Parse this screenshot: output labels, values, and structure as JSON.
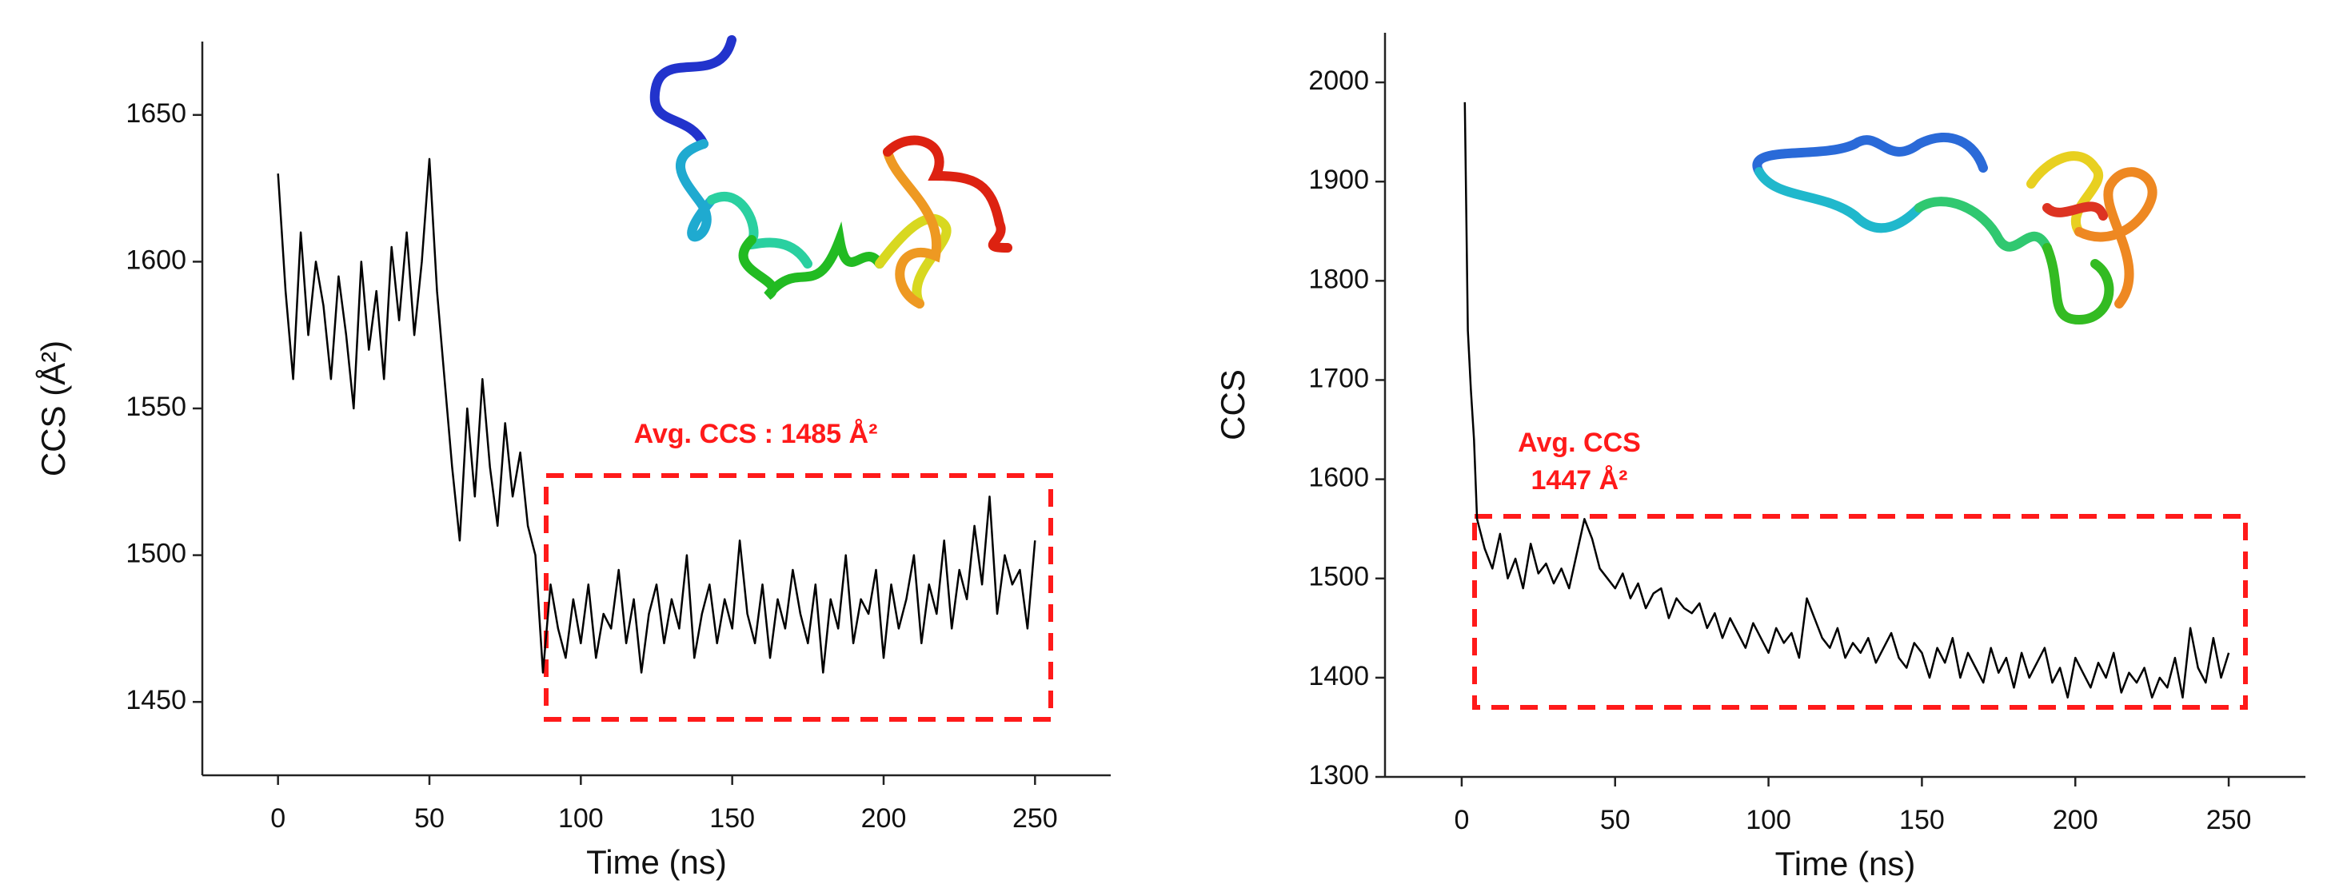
{
  "chart_data": [
    {
      "type": "line",
      "x_label": "Time (ns)",
      "y_label": "CCS (Å²)",
      "annotations": [
        "Avg. CCS : 1485 Å²"
      ],
      "color": "#000000",
      "xlim": [
        -25,
        275
      ],
      "ylim": [
        1425,
        1675
      ],
      "xticks": [
        0,
        50,
        100,
        150,
        200,
        250
      ],
      "yticks": [
        1450,
        1500,
        1550,
        1600,
        1650
      ],
      "x": [
        0,
        2.5,
        5,
        7.5,
        10,
        12.5,
        15,
        17.5,
        20,
        22.5,
        25,
        27.5,
        30,
        32.5,
        35,
        37.5,
        40,
        42.5,
        45,
        47.5,
        50,
        52.5,
        55,
        57.5,
        60,
        62.5,
        65,
        67.5,
        70,
        72.5,
        75,
        77.5,
        80,
        82.5,
        85,
        87.5,
        90,
        92.5,
        95,
        97.5,
        100,
        102.5,
        105,
        107.5,
        110,
        112.5,
        115,
        117.5,
        120,
        122.5,
        125,
        127.5,
        130,
        132.5,
        135,
        137.5,
        140,
        142.5,
        145,
        147.5,
        150,
        152.5,
        155,
        157.5,
        160,
        162.5,
        165,
        167.5,
        170,
        172.5,
        175,
        177.5,
        180,
        182.5,
        185,
        187.5,
        190,
        192.5,
        195,
        197.5,
        200,
        202.5,
        205,
        207.5,
        210,
        212.5,
        215,
        217.5,
        220,
        222.5,
        225,
        227.5,
        230,
        232.5,
        235,
        237.5,
        240,
        242.5,
        245,
        247.5,
        250
      ],
      "values": [
        1630,
        1590,
        1560,
        1610,
        1575,
        1600,
        1585,
        1560,
        1595,
        1575,
        1550,
        1600,
        1570,
        1590,
        1560,
        1605,
        1580,
        1610,
        1575,
        1600,
        1635,
        1590,
        1560,
        1530,
        1505,
        1550,
        1520,
        1560,
        1530,
        1510,
        1545,
        1520,
        1535,
        1510,
        1500,
        1460,
        1490,
        1475,
        1465,
        1485,
        1470,
        1490,
        1465,
        1480,
        1475,
        1495,
        1470,
        1485,
        1460,
        1480,
        1490,
        1470,
        1485,
        1475,
        1500,
        1465,
        1480,
        1490,
        1470,
        1485,
        1475,
        1505,
        1480,
        1470,
        1490,
        1465,
        1485,
        1475,
        1495,
        1480,
        1470,
        1490,
        1460,
        1485,
        1475,
        1500,
        1470,
        1485,
        1480,
        1495,
        1465,
        1490,
        1475,
        1485,
        1500,
        1470,
        1490,
        1480,
        1505,
        1475,
        1495,
        1485,
        1510,
        1490,
        1520,
        1480,
        1500,
        1490,
        1495,
        1475,
        1505
      ]
    },
    {
      "type": "line",
      "x_label": "Time (ns)",
      "y_label": "CCS",
      "annotations": [
        "Avg. CCS",
        "1447 Å²"
      ],
      "color": "#000000",
      "xlim": [
        -25,
        275
      ],
      "ylim": [
        1300,
        2050
      ],
      "xticks": [
        0,
        50,
        100,
        150,
        200,
        250
      ],
      "yticks": [
        1300,
        1400,
        1500,
        1600,
        1700,
        1800,
        1900,
        2000
      ],
      "x": [
        1,
        2,
        3,
        4,
        5,
        7.5,
        10,
        12.5,
        15,
        17.5,
        20,
        22.5,
        25,
        27.5,
        30,
        32.5,
        35,
        37.5,
        40,
        42.5,
        45,
        47.5,
        50,
        52.5,
        55,
        57.5,
        60,
        62.5,
        65,
        67.5,
        70,
        72.5,
        75,
        77.5,
        80,
        82.5,
        85,
        87.5,
        90,
        92.5,
        95,
        97.5,
        100,
        102.5,
        105,
        107.5,
        110,
        112.5,
        115,
        117.5,
        120,
        122.5,
        125,
        127.5,
        130,
        132.5,
        135,
        137.5,
        140,
        142.5,
        145,
        147.5,
        150,
        152.5,
        155,
        157.5,
        160,
        162.5,
        165,
        167.5,
        170,
        172.5,
        175,
        177.5,
        180,
        182.5,
        185,
        187.5,
        190,
        192.5,
        195,
        197.5,
        200,
        202.5,
        205,
        207.5,
        210,
        212.5,
        215,
        217.5,
        220,
        222.5,
        225,
        227.5,
        230,
        232.5,
        235,
        237.5,
        240,
        242.5,
        245,
        247.5,
        250
      ],
      "values": [
        1980,
        1750,
        1690,
        1640,
        1560,
        1530,
        1510,
        1545,
        1500,
        1520,
        1490,
        1535,
        1505,
        1515,
        1495,
        1510,
        1490,
        1525,
        1560,
        1540,
        1510,
        1500,
        1490,
        1505,
        1480,
        1495,
        1470,
        1485,
        1490,
        1460,
        1480,
        1470,
        1465,
        1475,
        1450,
        1465,
        1440,
        1460,
        1445,
        1430,
        1455,
        1440,
        1425,
        1450,
        1435,
        1445,
        1420,
        1480,
        1460,
        1440,
        1430,
        1450,
        1420,
        1435,
        1425,
        1440,
        1415,
        1430,
        1445,
        1420,
        1410,
        1435,
        1425,
        1400,
        1430,
        1415,
        1440,
        1400,
        1425,
        1410,
        1395,
        1430,
        1405,
        1420,
        1390,
        1425,
        1400,
        1415,
        1430,
        1395,
        1410,
        1380,
        1420,
        1405,
        1390,
        1415,
        1400,
        1425,
        1385,
        1405,
        1395,
        1410,
        1380,
        1400,
        1390,
        1420,
        1380,
        1450,
        1410,
        1395,
        1440,
        1400,
        1425
      ]
    }
  ]
}
